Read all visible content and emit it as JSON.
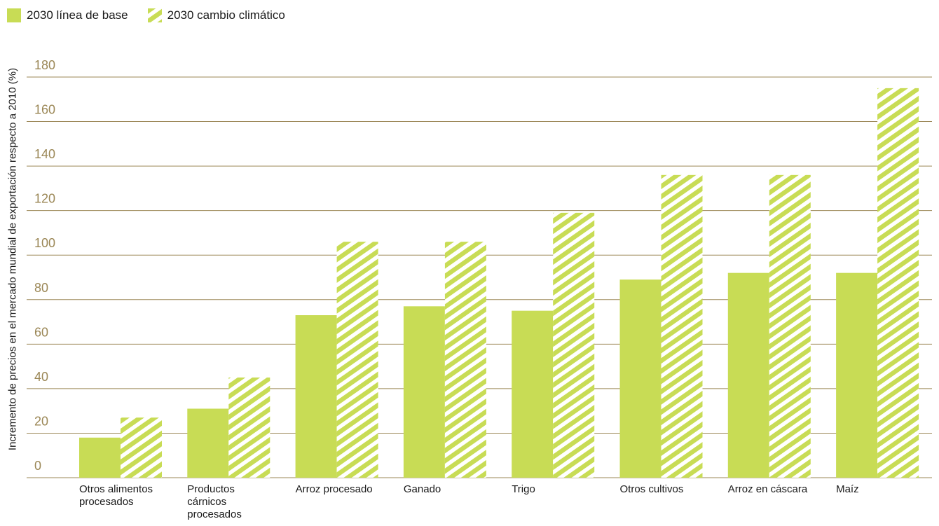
{
  "chart_data": {
    "type": "bar",
    "title": "",
    "xlabel": "",
    "ylabel": "Incremento de precios en el mercado mundial de exportación respecto a 2010 (%)",
    "ylim": [
      0,
      180
    ],
    "yticks": [
      0,
      20,
      40,
      60,
      80,
      100,
      120,
      140,
      160,
      180
    ],
    "grid": true,
    "legend_position": "top-left",
    "categories": [
      "Otros alimentos procesados",
      "Productos cárnicos procesados",
      "Arroz procesado",
      "Ganado",
      "Trigo",
      "Otros cultivos",
      "Arroz en cáscara",
      "Maíz"
    ],
    "category_lines": [
      [
        "Otros alimentos",
        "procesados"
      ],
      [
        "Productos",
        "cárnicos",
        "procesados"
      ],
      [
        "Arroz procesado"
      ],
      [
        "Ganado"
      ],
      [
        "Trigo"
      ],
      [
        "Otros cultivos"
      ],
      [
        "Arroz en cáscara"
      ],
      [
        "Maíz"
      ]
    ],
    "series": [
      {
        "name": "2030 línea de base",
        "pattern": "solid",
        "color": "#c8dc55",
        "values": [
          18,
          31,
          73,
          77,
          75,
          89,
          92,
          92
        ]
      },
      {
        "name": "2030 cambio climático",
        "pattern": "hatched",
        "color": "#c8dc55",
        "values": [
          27,
          45,
          106,
          106,
          119,
          136,
          136,
          175
        ]
      }
    ]
  },
  "colors": {
    "grid": "#9b8756",
    "tick": "#9b8756",
    "bar": "#c8dc55"
  }
}
